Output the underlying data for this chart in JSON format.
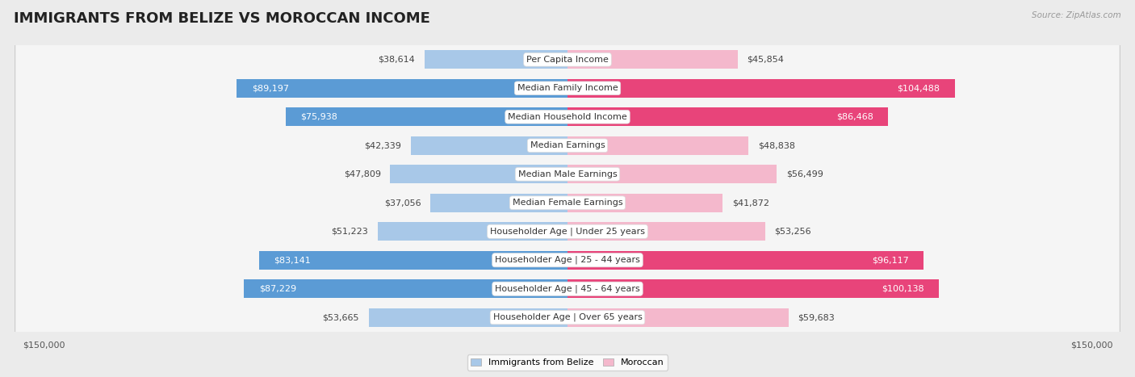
{
  "title": "IMMIGRANTS FROM BELIZE VS MOROCCAN INCOME",
  "source": "Source: ZipAtlas.com",
  "categories": [
    "Per Capita Income",
    "Median Family Income",
    "Median Household Income",
    "Median Earnings",
    "Median Male Earnings",
    "Median Female Earnings",
    "Householder Age | Under 25 years",
    "Householder Age | 25 - 44 years",
    "Householder Age | 45 - 64 years",
    "Householder Age | Over 65 years"
  ],
  "belize_values": [
    38614,
    89197,
    75938,
    42339,
    47809,
    37056,
    51223,
    83141,
    87229,
    53665
  ],
  "moroccan_values": [
    45854,
    104488,
    86468,
    48838,
    56499,
    41872,
    53256,
    96117,
    100138,
    59683
  ],
  "belize_labels": [
    "$38,614",
    "$89,197",
    "$75,938",
    "$42,339",
    "$47,809",
    "$37,056",
    "$51,223",
    "$83,141",
    "$87,229",
    "$53,665"
  ],
  "moroccan_labels": [
    "$45,854",
    "$104,488",
    "$86,468",
    "$48,838",
    "$56,499",
    "$41,872",
    "$53,256",
    "$96,117",
    "$100,138",
    "$59,683"
  ],
  "belize_color_light": "#a8c8e8",
  "belize_color_dark": "#5b9bd5",
  "moroccan_color_light": "#f4b8cc",
  "moroccan_color_dark": "#e8447a",
  "dark_threshold": 70000,
  "bg_color": "#ebebeb",
  "row_bg_color": "#f5f5f5",
  "max_value": 150000,
  "xlabel_left": "$150,000",
  "xlabel_right": "$150,000",
  "legend_belize": "Immigrants from Belize",
  "legend_moroccan": "Moroccan",
  "title_fontsize": 13,
  "label_fontsize": 8,
  "cat_fontsize": 8,
  "source_fontsize": 7.5
}
